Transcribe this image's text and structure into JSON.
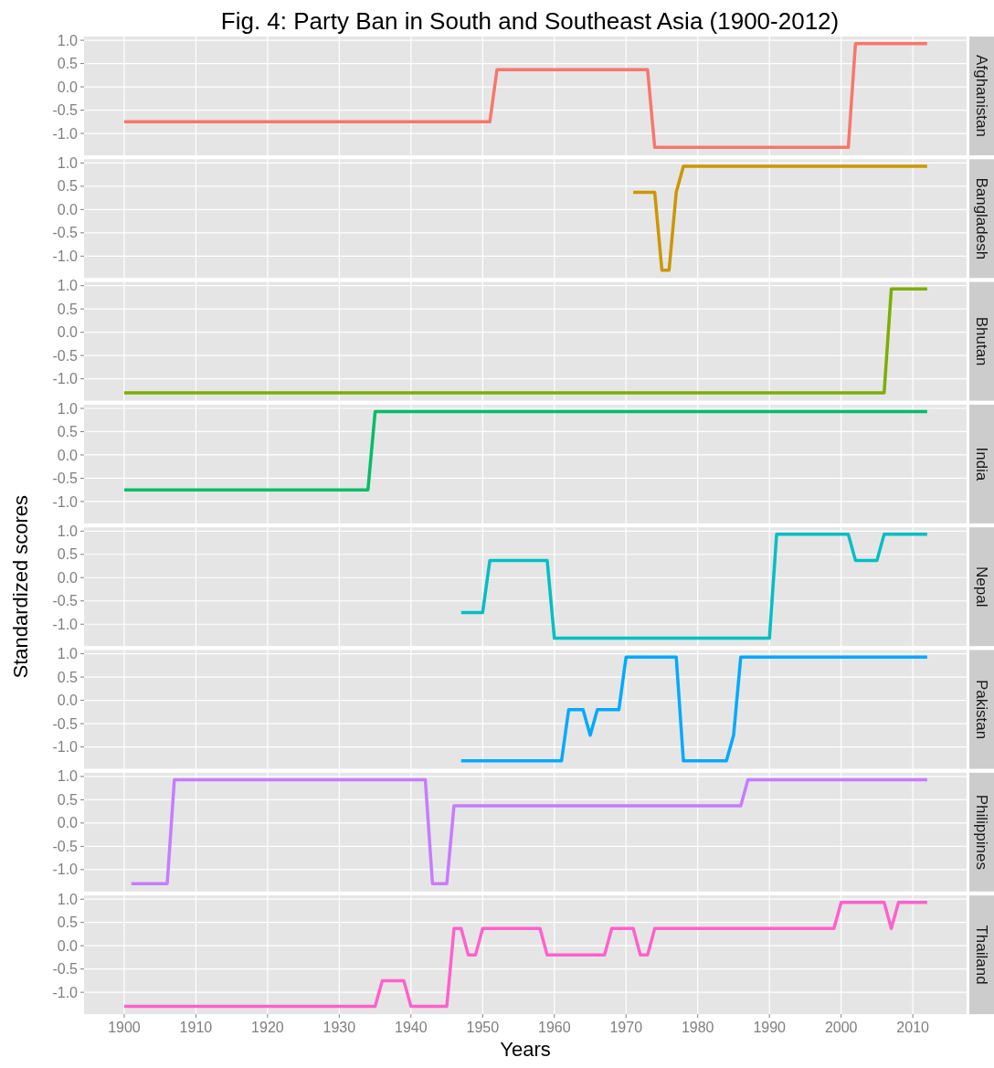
{
  "chart_data": [
    {
      "type": "line",
      "title": "Fig. 4: Party Ban in South and Southeast Asia (1900-2012)",
      "xlim": [
        1894.4,
        2017.5
      ],
      "xticks": [
        1900,
        1910,
        1920,
        1930,
        1940,
        1950,
        1960,
        1970,
        1980,
        1990,
        2000,
        2010
      ],
      "ylim": [
        -1.47,
        1.08
      ],
      "yticks": [
        {
          "value": 1,
          "label": "1.0"
        },
        {
          "value": 0.5,
          "label": "0.5"
        },
        {
          "value": 0,
          "label": "0.0"
        },
        {
          "value": -0.5,
          "label": "-0.5"
        },
        {
          "value": -1,
          "label": "-1.0"
        }
      ],
      "grid": true,
      "tick_labels": "y",
      "series": [
        {
          "name": "Afghanistan",
          "color": "#f8766d",
          "x": [
            1900,
            1951,
            1952,
            1973,
            1974,
            2001,
            2002,
            2012
          ],
          "values": [
            -0.75,
            -0.75,
            0.37,
            0.37,
            -1.3,
            -1.3,
            0.93,
            0.93
          ]
        }
      ]
    },
    {
      "type": "line",
      "xlim": [
        1894.4,
        2017.5
      ],
      "xticks": [
        1900,
        1910,
        1920,
        1930,
        1940,
        1950,
        1960,
        1970,
        1980,
        1990,
        2000,
        2010
      ],
      "ylim": [
        -1.47,
        1.08
      ],
      "yticks": [
        {
          "value": 1,
          "label": "1.0"
        },
        {
          "value": 0.5,
          "label": "0.5"
        },
        {
          "value": 0,
          "label": "0.0"
        },
        {
          "value": -0.5,
          "label": "-0.5"
        },
        {
          "value": -1,
          "label": "-1.0"
        }
      ],
      "grid": true,
      "tick_labels": "y",
      "series": [
        {
          "name": "Bangladesh",
          "color": "#cd9600",
          "x": [
            1971,
            1974,
            1975,
            1976,
            1977,
            1978,
            2012
          ],
          "values": [
            0.37,
            0.37,
            -1.3,
            -1.3,
            0.37,
            0.93,
            0.93
          ]
        }
      ]
    },
    {
      "type": "line",
      "xlim": [
        1894.4,
        2017.5
      ],
      "xticks": [
        1900,
        1910,
        1920,
        1930,
        1940,
        1950,
        1960,
        1970,
        1980,
        1990,
        2000,
        2010
      ],
      "ylim": [
        -1.47,
        1.08
      ],
      "yticks": [
        {
          "value": 1,
          "label": "1.0"
        },
        {
          "value": 0.5,
          "label": "0.5"
        },
        {
          "value": 0,
          "label": "0.0"
        },
        {
          "value": -0.5,
          "label": "-0.5"
        },
        {
          "value": -1,
          "label": "-1.0"
        }
      ],
      "grid": true,
      "tick_labels": "y",
      "series": [
        {
          "name": "Bhutan",
          "color": "#7cae00",
          "x": [
            1900,
            2006,
            2007,
            2012
          ],
          "values": [
            -1.3,
            -1.3,
            0.93,
            0.93
          ]
        }
      ]
    },
    {
      "type": "line",
      "xlim": [
        1894.4,
        2017.5
      ],
      "xticks": [
        1900,
        1910,
        1920,
        1930,
        1940,
        1950,
        1960,
        1970,
        1980,
        1990,
        2000,
        2010
      ],
      "ylim": [
        -1.47,
        1.08
      ],
      "yticks": [
        {
          "value": 1,
          "label": "1.0"
        },
        {
          "value": 0.5,
          "label": "0.5"
        },
        {
          "value": 0,
          "label": "0.0"
        },
        {
          "value": -0.5,
          "label": "-0.5"
        },
        {
          "value": -1,
          "label": "-1.0"
        }
      ],
      "grid": true,
      "tick_labels": "y",
      "series": [
        {
          "name": "India",
          "color": "#00be67",
          "x": [
            1900,
            1934,
            1935,
            2012
          ],
          "values": [
            -0.75,
            -0.75,
            0.93,
            0.93
          ]
        }
      ]
    },
    {
      "type": "line",
      "ylabel": "Standardized scores",
      "xlim": [
        1894.4,
        2017.5
      ],
      "xticks": [
        1900,
        1910,
        1920,
        1930,
        1940,
        1950,
        1960,
        1970,
        1980,
        1990,
        2000,
        2010
      ],
      "ylim": [
        -1.47,
        1.08
      ],
      "yticks": [
        {
          "value": 1,
          "label": "1.0"
        },
        {
          "value": 0.5,
          "label": "0.5"
        },
        {
          "value": 0,
          "label": "0.0"
        },
        {
          "value": -0.5,
          "label": "-0.5"
        },
        {
          "value": -1,
          "label": "-1.0"
        }
      ],
      "grid": true,
      "tick_labels": "y",
      "series": [
        {
          "name": "Nepal",
          "color": "#00bfc4",
          "x": [
            1947,
            1950,
            1951,
            1959,
            1960,
            1990,
            1991,
            2001,
            2002,
            2005,
            2006,
            2012
          ],
          "values": [
            -0.75,
            -0.75,
            0.37,
            0.37,
            -1.3,
            -1.3,
            0.93,
            0.93,
            0.37,
            0.37,
            0.93,
            0.93
          ]
        }
      ]
    },
    {
      "type": "line",
      "xlim": [
        1894.4,
        2017.5
      ],
      "xticks": [
        1900,
        1910,
        1920,
        1930,
        1940,
        1950,
        1960,
        1970,
        1980,
        1990,
        2000,
        2010
      ],
      "ylim": [
        -1.47,
        1.08
      ],
      "yticks": [
        {
          "value": 1,
          "label": "1.0"
        },
        {
          "value": 0.5,
          "label": "0.5"
        },
        {
          "value": 0,
          "label": "0.0"
        },
        {
          "value": -0.5,
          "label": "-0.5"
        },
        {
          "value": -1,
          "label": "-1.0"
        }
      ],
      "grid": true,
      "tick_labels": "y",
      "series": [
        {
          "name": "Pakistan",
          "color": "#00a9ff",
          "x": [
            1947,
            1961,
            1962,
            1964,
            1965,
            1966,
            1969,
            1970,
            1977,
            1978,
            1984,
            1985,
            1986,
            2012
          ],
          "values": [
            -1.3,
            -1.3,
            -0.2,
            -0.2,
            -0.75,
            -0.2,
            -0.2,
            0.93,
            0.93,
            -1.3,
            -1.3,
            -0.75,
            0.93,
            0.93
          ]
        }
      ]
    },
    {
      "type": "line",
      "xlim": [
        1894.4,
        2017.5
      ],
      "xticks": [
        1900,
        1910,
        1920,
        1930,
        1940,
        1950,
        1960,
        1970,
        1980,
        1990,
        2000,
        2010
      ],
      "ylim": [
        -1.47,
        1.08
      ],
      "yticks": [
        {
          "value": 1,
          "label": "1.0"
        },
        {
          "value": 0.5,
          "label": "0.5"
        },
        {
          "value": 0,
          "label": "0.0"
        },
        {
          "value": -0.5,
          "label": "-0.5"
        },
        {
          "value": -1,
          "label": "-1.0"
        }
      ],
      "grid": true,
      "tick_labels": "y",
      "series": [
        {
          "name": "Philippines",
          "color": "#c77cff",
          "x": [
            1901,
            1906,
            1907,
            1942,
            1943,
            1945,
            1946,
            1986,
            1987,
            2012
          ],
          "values": [
            -1.3,
            -1.3,
            0.93,
            0.93,
            -1.3,
            -1.3,
            0.37,
            0.37,
            0.93,
            0.93
          ]
        }
      ]
    },
    {
      "type": "line",
      "xlabel": "Years",
      "xlim": [
        1894.4,
        2017.5
      ],
      "xticks": [
        1900,
        1910,
        1920,
        1930,
        1940,
        1950,
        1960,
        1970,
        1980,
        1990,
        2000,
        2010
      ],
      "ylim": [
        -1.47,
        1.08
      ],
      "yticks": [
        {
          "value": 1,
          "label": "1.0"
        },
        {
          "value": 0.5,
          "label": "0.5"
        },
        {
          "value": 0,
          "label": "0.0"
        },
        {
          "value": -0.5,
          "label": "-0.5"
        },
        {
          "value": -1,
          "label": "-1.0"
        }
      ],
      "grid": true,
      "series": [
        {
          "name": "Thailand",
          "color": "#ff61cc",
          "x": [
            1900,
            1935,
            1936,
            1939,
            1940,
            1945,
            1946,
            1947,
            1948,
            1949,
            1950,
            1958,
            1959,
            1967,
            1968,
            1971,
            1972,
            1973,
            1974,
            1999,
            2000,
            2006,
            2007,
            2008,
            2012
          ],
          "values": [
            -1.3,
            -1.3,
            -0.75,
            -0.75,
            -1.3,
            -1.3,
            0.37,
            0.37,
            -0.2,
            -0.2,
            0.37,
            0.37,
            -0.2,
            -0.2,
            0.37,
            0.37,
            -0.2,
            -0.2,
            0.37,
            0.37,
            0.93,
            0.93,
            0.37,
            0.93,
            0.93
          ]
        }
      ]
    }
  ]
}
